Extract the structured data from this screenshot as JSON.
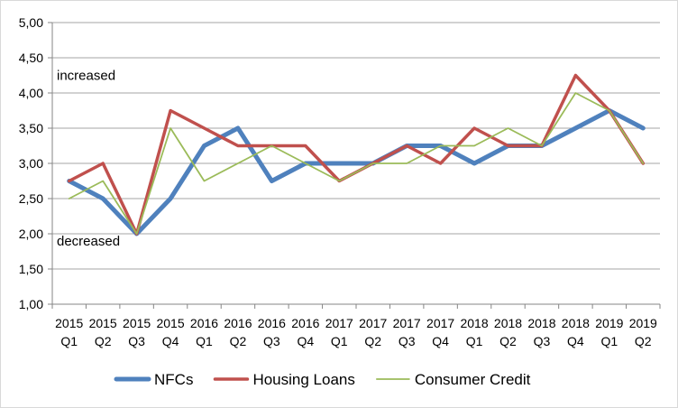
{
  "chart_data": {
    "type": "line",
    "x_years": [
      "2015",
      "2015",
      "2015",
      "2015",
      "2016",
      "2016",
      "2016",
      "2016",
      "2017",
      "2017",
      "2017",
      "2017",
      "2018",
      "2018",
      "2018",
      "2018",
      "2019",
      "2019"
    ],
    "x_quarters": [
      "Q1",
      "Q2",
      "Q3",
      "Q4",
      "Q1",
      "Q2",
      "Q3",
      "Q4",
      "Q1",
      "Q2",
      "Q3",
      "Q4",
      "Q1",
      "Q2",
      "Q3",
      "Q4",
      "Q1",
      "Q2"
    ],
    "y_tick_labels": [
      "1,00",
      "1,50",
      "2,00",
      "2,50",
      "3,00",
      "3,50",
      "4,00",
      "4,50",
      "5,00"
    ],
    "y_ticks": [
      1.0,
      1.5,
      2.0,
      2.5,
      3.0,
      3.5,
      4.0,
      4.5,
      5.0
    ],
    "ylim": [
      1.0,
      5.0
    ],
    "grid": true,
    "legend_position": "bottom",
    "annotations": [
      {
        "text": "increased",
        "y": 4.25
      },
      {
        "text": "decreased",
        "y": 1.9
      }
    ],
    "series": [
      {
        "name": "NFCs",
        "color": "#4f81bd",
        "stroke": "thick",
        "values": [
          2.75,
          2.5,
          2.0,
          2.5,
          3.25,
          3.5,
          2.75,
          3.0,
          3.0,
          3.0,
          3.25,
          3.25,
          3.0,
          3.25,
          3.25,
          3.5,
          3.75,
          3.5
        ]
      },
      {
        "name": "Housing Loans",
        "color": "#c0504d",
        "stroke": "medium",
        "values": [
          2.75,
          3.0,
          2.0,
          3.75,
          3.5,
          3.25,
          3.25,
          3.25,
          2.75,
          3.0,
          3.25,
          3.0,
          3.5,
          3.25,
          3.25,
          4.25,
          3.75,
          3.0
        ]
      },
      {
        "name": "Consumer Credit",
        "color": "#9bbb59",
        "stroke": "thin",
        "values": [
          2.5,
          2.75,
          2.0,
          3.5,
          2.75,
          3.0,
          3.25,
          3.0,
          2.75,
          3.0,
          3.0,
          3.25,
          3.25,
          3.5,
          3.25,
          4.0,
          3.75,
          3.0
        ]
      }
    ]
  }
}
